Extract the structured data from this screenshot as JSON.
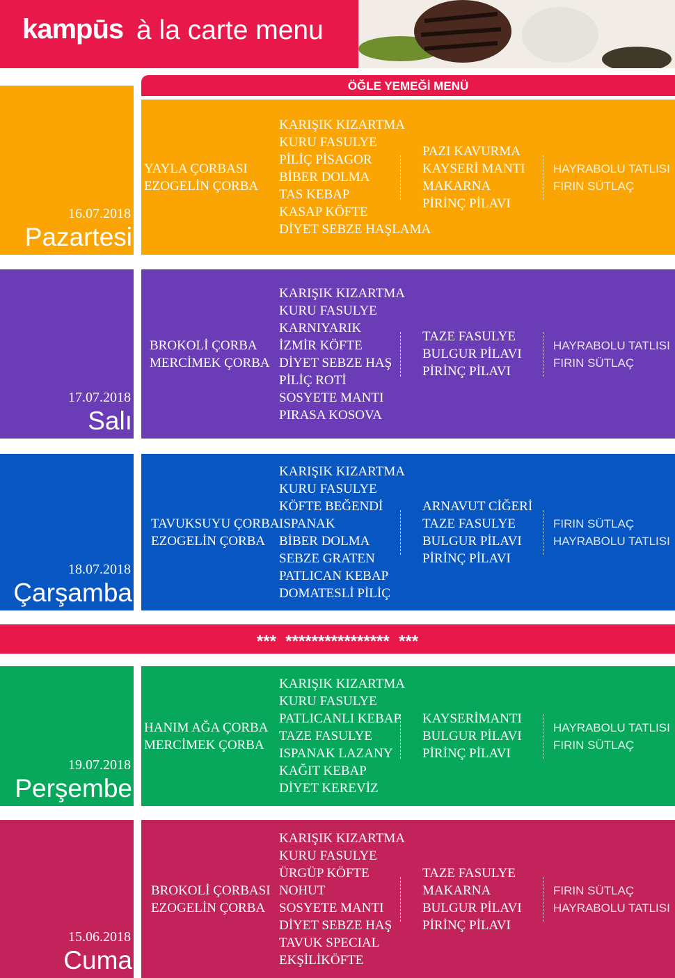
{
  "header": {
    "logo": "kampūs",
    "title": "à la carte menu"
  },
  "section_title": "ÖĞLE YEMEĞİ MENÜ",
  "days": [
    {
      "date": "16.07.2018",
      "name": "Pazartesi",
      "soups": [
        "YAYLA ÇORBASI",
        "EZOGELİN ÇORBA"
      ],
      "mains": [
        "KARIŞIK KIZARTMA",
        "KURU FASULYE",
        "PİLİÇ PİSAGOR",
        "BİBER DOLMA",
        "TAS KEBAP",
        "KASAP KÖFTE",
        "DİYET SEBZE HAŞLAMA"
      ],
      "sides": [
        "PAZI KAVURMA",
        "KAYSERİ MANTI",
        "MAKARNA",
        "PİRİNÇ PİLAVI"
      ],
      "desserts": [
        "HAYRABOLU TATLISI",
        "FIRIN SÜTLAÇ"
      ]
    },
    {
      "date": "17.07.2018",
      "name": "Salı",
      "soups": [
        "BROKOLİ ÇORBA",
        "MERCİMEK ÇORBA"
      ],
      "mains": [
        "KARIŞIK KIZARTMA",
        "KURU FASULYE",
        "KARNIYARIK",
        "İZMİR KÖFTE",
        "DİYET SEBZE HAŞ",
        "PİLİÇ ROTİ",
        "SOSYETE MANTI",
        "PIRASA KOSOVA"
      ],
      "sides": [
        "TAZE FASULYE",
        "BULGUR PİLAVI",
        "PİRİNÇ PİLAVI"
      ],
      "desserts": [
        "HAYRABOLU TATLISI",
        "FIRIN SÜTLAÇ"
      ]
    },
    {
      "date": "18.07.2018",
      "name": "Çarşamba",
      "soups": [
        "TAVUKSUYU ÇORBA",
        "EZOGELİN ÇORBA"
      ],
      "mains": [
        "KARIŞIK KIZARTMA",
        "KURU FASULYE",
        "KÖFTE BEĞENDİ",
        "ISPANAK",
        "BİBER DOLMA",
        "SEBZE GRATEN",
        "PATLICAN KEBAP",
        "DOMATESLİ PİLİÇ"
      ],
      "sides": [
        "ARNAVUT CİĞERİ",
        "TAZE FASULYE",
        "BULGUR PİLAVI",
        "PİRİNÇ PİLAVI"
      ],
      "desserts": [
        "FIRIN SÜTLAÇ",
        "HAYRABOLU TATLISI"
      ]
    },
    {
      "date": "19.07.2018",
      "name": "Perşembe",
      "soups": [
        "HANIM AĞA ÇORBA",
        "MERCİMEK ÇORBA"
      ],
      "mains": [
        "KARIŞIK KIZARTMA",
        "KURU FASULYE",
        "PATLICANLI KEBAP",
        "TAZE FASULYE",
        "ISPANAK LAZANY",
        "KAĞIT KEBAP",
        "DİYET KEREVİZ"
      ],
      "sides": [
        "KAYSERİMANTI",
        "BULGUR PİLAVI",
        "PİRİNÇ PİLAVI"
      ],
      "desserts": [
        "HAYRABOLU TATLISI",
        "FIRIN SÜTLAÇ"
      ]
    },
    {
      "date": "15.06.2018",
      "name": "Cuma",
      "soups": [
        "BROKOLİ ÇORBASI",
        "EZOGELİN ÇORBA"
      ],
      "mains": [
        "KARIŞIK KIZARTMA",
        "KURU FASULYE",
        "ÜRGÜP KÖFTE",
        "NOHUT",
        "SOSYETE MANTI",
        "DİYET SEBZE HAŞ",
        "TAVUK SPECIAL",
        "EKŞİLİKÖFTE"
      ],
      "sides": [
        "TAZE FASULYE",
        "MAKARNA",
        "BULGUR PİLAVI",
        "PİRİNÇ PİLAVI"
      ],
      "desserts": [
        "FIRIN SÜTLAÇ",
        "HAYRABOLU TATLISI"
      ]
    }
  ],
  "divider": "***  ****************  ***"
}
